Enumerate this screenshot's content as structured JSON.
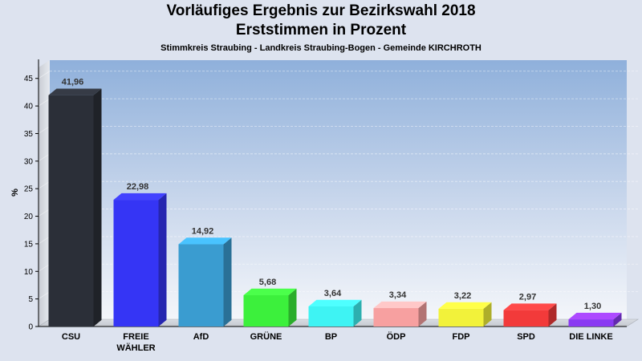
{
  "header": {
    "title_line1": "Vorläufiges Ergebnis zur Bezirkswahl 2018",
    "title_line2": "Erststimmen in Prozent",
    "subtitle": "Stimmkreis Straubing - Landkreis Straubing-Bogen - Gemeinde KIRCHROTH"
  },
  "chart_data": {
    "type": "bar",
    "title": "Vorläufiges Ergebnis zur Bezirkswahl 2018 Erststimmen in Prozent",
    "subtitle": "Stimmkreis Straubing - Landkreis Straubing-Bogen - Gemeinde KIRCHROTH",
    "ylabel": "%",
    "xlabel": "",
    "ylim": [
      0,
      47
    ],
    "yticks": [
      0,
      5,
      10,
      15,
      20,
      25,
      30,
      35,
      40,
      45
    ],
    "grid": true,
    "categories": [
      "CSU",
      "FREIE WÄHLER",
      "AfD",
      "GRÜNE",
      "BP",
      "ÖDP",
      "FDP",
      "SPD",
      "DIE LINKE"
    ],
    "category_lines": [
      [
        "CSU"
      ],
      [
        "FREIE",
        "WÄHLER"
      ],
      [
        "AfD"
      ],
      [
        "GRÜNE"
      ],
      [
        "BP"
      ],
      [
        "ÖDP"
      ],
      [
        "FDP"
      ],
      [
        "SPD"
      ],
      [
        "DIE LINKE"
      ]
    ],
    "values": [
      41.96,
      22.98,
      14.92,
      5.68,
      3.64,
      3.34,
      3.22,
      2.97,
      1.3
    ],
    "value_labels": [
      "41,96",
      "22,98",
      "14,92",
      "5,68",
      "3,64",
      "3,34",
      "3,22",
      "2,97",
      "1,30"
    ],
    "colors": [
      "#2b2f38",
      "#3535f5",
      "#3a9cd0",
      "#3cf03c",
      "#3ef3f3",
      "#f7a0a0",
      "#f2f23a",
      "#f23a3a",
      "#8a3af2"
    ]
  }
}
